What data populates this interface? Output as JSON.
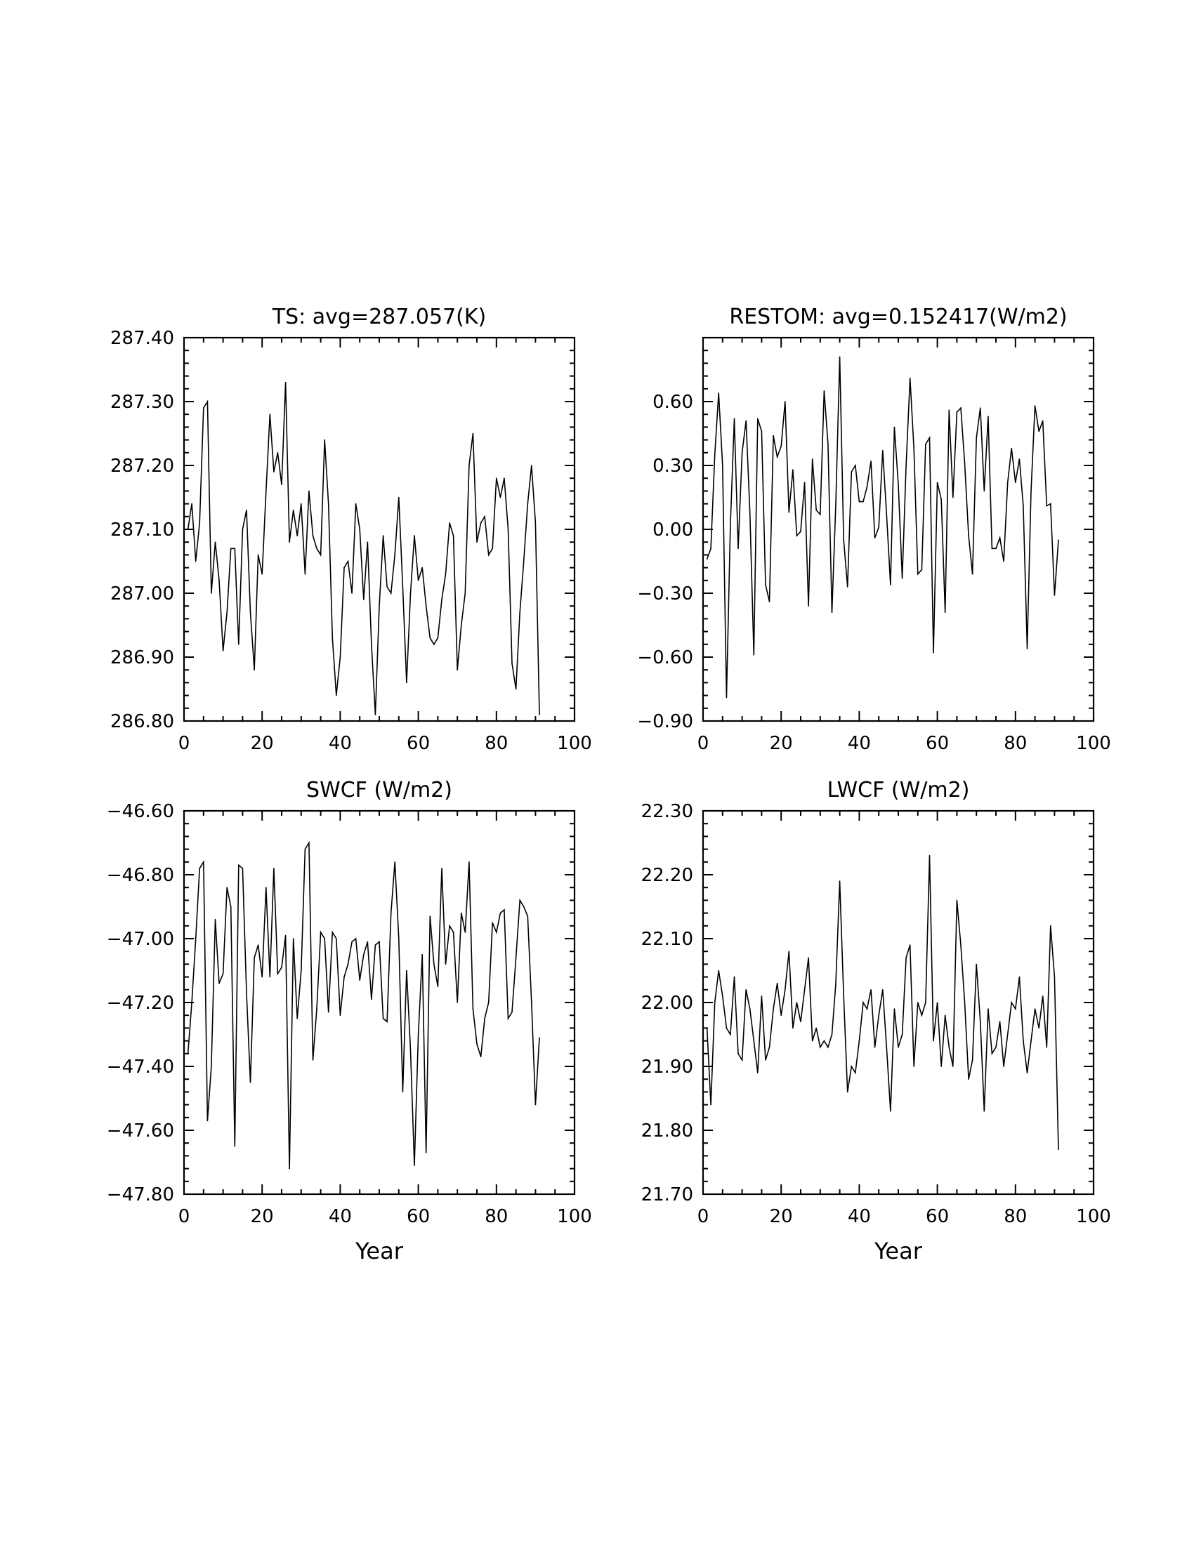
{
  "chart_data": [
    {
      "type": "line",
      "title": "TS: avg=287.057(K)",
      "xlabel": "",
      "ylabel": "",
      "xlim": [
        0,
        100
      ],
      "ylim": [
        286.8,
        287.4
      ],
      "xticks": [
        "0",
        "20",
        "40",
        "60",
        "80",
        "100"
      ],
      "yticks": [
        "286.80",
        "286.90",
        "287.00",
        "287.10",
        "287.20",
        "287.30",
        "287.40"
      ],
      "x": [
        1,
        2,
        3,
        4,
        5,
        6,
        7,
        8,
        9,
        10,
        11,
        12,
        13,
        14,
        15,
        16,
        17,
        18,
        19,
        20,
        21,
        22,
        23,
        24,
        25,
        26,
        27,
        28,
        29,
        30,
        31,
        32,
        33,
        34,
        35,
        36,
        37,
        38,
        39,
        40,
        41,
        42,
        43,
        44,
        45,
        46,
        47,
        48,
        49,
        50,
        51,
        52,
        53,
        54,
        55,
        56,
        57,
        58,
        59,
        60,
        61,
        62,
        63,
        64,
        65,
        66,
        67,
        68,
        69,
        70,
        71,
        72,
        73,
        74,
        75,
        76,
        77,
        78,
        79,
        80,
        81,
        82,
        83,
        84,
        85,
        86,
        87,
        88,
        89,
        90,
        91
      ],
      "series": [
        {
          "values": [
            287.1,
            287.14,
            287.05,
            287.11,
            287.29,
            287.3,
            287.0,
            287.08,
            287.02,
            286.91,
            286.97,
            287.07,
            287.07,
            286.92,
            287.1,
            287.13,
            286.97,
            286.88,
            287.06,
            287.03,
            287.16,
            287.28,
            287.19,
            287.22,
            287.17,
            287.33,
            287.08,
            287.13,
            287.09,
            287.14,
            287.03,
            287.16,
            287.09,
            287.07,
            287.06,
            287.24,
            287.14,
            286.93,
            286.84,
            286.9,
            287.04,
            287.05,
            287.0,
            287.14,
            287.1,
            286.99,
            287.08,
            286.92,
            286.81,
            286.98,
            287.09,
            287.01,
            287.0,
            287.06,
            287.15,
            287.01,
            286.86,
            287.0,
            287.09,
            287.02,
            287.04,
            286.98,
            286.93,
            286.92,
            286.93,
            286.99,
            287.03,
            287.11,
            287.09,
            286.88,
            286.95,
            287.0,
            287.2,
            287.25,
            287.08,
            287.11,
            287.12,
            287.06,
            287.07,
            287.18,
            287.15,
            287.18,
            287.1,
            286.89,
            286.85,
            286.97,
            287.05,
            287.14,
            287.2,
            287.11,
            286.81
          ]
        }
      ]
    },
    {
      "type": "line",
      "title": "RESTOM: avg=0.152417(W/m2)",
      "xlabel": "",
      "ylabel": "",
      "xlim": [
        0,
        100
      ],
      "ylim": [
        -0.9,
        0.9
      ],
      "xticks": [
        "0",
        "20",
        "40",
        "60",
        "80",
        "100"
      ],
      "yticks": [
        "−0.90",
        "−0.60",
        "−0.30",
        "0.00",
        "0.30",
        "0.60"
      ],
      "yticks_values": [
        -0.9,
        -0.6,
        -0.3,
        0.0,
        0.3,
        0.6
      ],
      "x": [
        1,
        2,
        3,
        4,
        5,
        6,
        7,
        8,
        9,
        10,
        11,
        12,
        13,
        14,
        15,
        16,
        17,
        18,
        19,
        20,
        21,
        22,
        23,
        24,
        25,
        26,
        27,
        28,
        29,
        30,
        31,
        32,
        33,
        34,
        35,
        36,
        37,
        38,
        39,
        40,
        41,
        42,
        43,
        44,
        45,
        46,
        47,
        48,
        49,
        50,
        51,
        52,
        53,
        54,
        55,
        56,
        57,
        58,
        59,
        60,
        61,
        62,
        63,
        64,
        65,
        66,
        67,
        68,
        69,
        70,
        71,
        72,
        73,
        74,
        75,
        76,
        77,
        78,
        79,
        80,
        81,
        82,
        83,
        84,
        85,
        86,
        87,
        88,
        89,
        90,
        91
      ],
      "series": [
        {
          "values": [
            -0.14,
            -0.09,
            0.35,
            0.64,
            0.3,
            -0.79,
            0.02,
            0.52,
            -0.09,
            0.36,
            0.51,
            0.08,
            -0.59,
            0.52,
            0.46,
            -0.26,
            -0.34,
            0.44,
            0.34,
            0.39,
            0.6,
            0.08,
            0.28,
            -0.03,
            -0.01,
            0.22,
            -0.36,
            0.33,
            0.09,
            0.07,
            0.65,
            0.4,
            -0.39,
            0.12,
            0.81,
            -0.05,
            -0.27,
            0.27,
            0.3,
            0.13,
            0.13,
            0.2,
            0.32,
            -0.04,
            0.01,
            0.37,
            0.07,
            -0.26,
            0.48,
            0.21,
            -0.23,
            0.3,
            0.71,
            0.38,
            -0.21,
            -0.19,
            0.4,
            0.43,
            -0.58,
            0.22,
            0.14,
            -0.39,
            0.56,
            0.15,
            0.55,
            0.57,
            0.31,
            -0.03,
            -0.21,
            0.43,
            0.57,
            0.18,
            0.53,
            -0.09,
            -0.09,
            -0.04,
            -0.15,
            0.22,
            0.38,
            0.22,
            0.33,
            0.11,
            -0.56,
            0.18,
            0.58,
            0.46,
            0.51,
            0.11,
            0.12,
            -0.31,
            -0.05
          ]
        }
      ]
    },
    {
      "type": "line",
      "title": "SWCF (W/m2)",
      "xlabel": "Year",
      "ylabel": "",
      "xlim": [
        0,
        100
      ],
      "ylim": [
        -47.8,
        -46.6
      ],
      "xticks": [
        "0",
        "20",
        "40",
        "60",
        "80",
        "100"
      ],
      "yticks": [
        "−47.80",
        "−47.60",
        "−47.40",
        "−47.20",
        "−47.00",
        "−46.80",
        "−46.60"
      ],
      "yticks_values": [
        -47.8,
        -47.6,
        -47.4,
        -47.2,
        -47.0,
        -46.8,
        -46.6
      ],
      "x": [
        1,
        2,
        3,
        4,
        5,
        6,
        7,
        8,
        9,
        10,
        11,
        12,
        13,
        14,
        15,
        16,
        17,
        18,
        19,
        20,
        21,
        22,
        23,
        24,
        25,
        26,
        27,
        28,
        29,
        30,
        31,
        32,
        33,
        34,
        35,
        36,
        37,
        38,
        39,
        40,
        41,
        42,
        43,
        44,
        45,
        46,
        47,
        48,
        49,
        50,
        51,
        52,
        53,
        54,
        55,
        56,
        57,
        58,
        59,
        60,
        61,
        62,
        63,
        64,
        65,
        66,
        67,
        68,
        69,
        70,
        71,
        72,
        73,
        74,
        75,
        76,
        77,
        78,
        79,
        80,
        81,
        82,
        83,
        84,
        85,
        86,
        87,
        88,
        89,
        90,
        91
      ],
      "series": [
        {
          "values": [
            -47.36,
            -47.2,
            -47.0,
            -46.78,
            -46.76,
            -47.57,
            -47.4,
            -46.94,
            -47.14,
            -47.11,
            -46.84,
            -46.9,
            -47.65,
            -46.77,
            -46.78,
            -47.17,
            -47.45,
            -47.06,
            -47.02,
            -47.12,
            -46.84,
            -47.12,
            -46.78,
            -47.11,
            -47.09,
            -46.99,
            -47.72,
            -47.0,
            -47.25,
            -47.1,
            -46.72,
            -46.7,
            -47.38,
            -47.22,
            -46.98,
            -47.0,
            -47.23,
            -46.98,
            -47.0,
            -47.24,
            -47.12,
            -47.08,
            -47.01,
            -47.0,
            -47.13,
            -47.05,
            -47.01,
            -47.19,
            -47.02,
            -47.01,
            -47.25,
            -47.26,
            -46.92,
            -46.76,
            -47.0,
            -47.48,
            -47.1,
            -47.35,
            -47.71,
            -47.3,
            -47.05,
            -47.67,
            -46.93,
            -47.08,
            -47.15,
            -46.78,
            -47.08,
            -46.96,
            -46.98,
            -47.2,
            -46.92,
            -46.98,
            -46.76,
            -47.22,
            -47.33,
            -47.37,
            -47.25,
            -47.2,
            -46.95,
            -46.98,
            -46.92,
            -46.91,
            -47.25,
            -47.23,
            -47.06,
            -46.88,
            -46.9,
            -46.93,
            -47.2,
            -47.52,
            -47.31
          ]
        }
      ]
    },
    {
      "type": "line",
      "title": "LWCF (W/m2)",
      "xlabel": "Year",
      "ylabel": "",
      "xlim": [
        0,
        100
      ],
      "ylim": [
        21.7,
        22.3
      ],
      "xticks": [
        "0",
        "20",
        "40",
        "60",
        "80",
        "100"
      ],
      "yticks": [
        "21.70",
        "21.80",
        "21.90",
        "22.00",
        "22.10",
        "22.20",
        "22.30"
      ],
      "x": [
        1,
        2,
        3,
        4,
        5,
        6,
        7,
        8,
        9,
        10,
        11,
        12,
        13,
        14,
        15,
        16,
        17,
        18,
        19,
        20,
        21,
        22,
        23,
        24,
        25,
        26,
        27,
        28,
        29,
        30,
        31,
        32,
        33,
        34,
        35,
        36,
        37,
        38,
        39,
        40,
        41,
        42,
        43,
        44,
        45,
        46,
        47,
        48,
        49,
        50,
        51,
        52,
        53,
        54,
        55,
        56,
        57,
        58,
        59,
        60,
        61,
        62,
        63,
        64,
        65,
        66,
        67,
        68,
        69,
        70,
        71,
        72,
        73,
        74,
        75,
        76,
        77,
        78,
        79,
        80,
        81,
        82,
        83,
        84,
        85,
        86,
        87,
        88,
        89,
        90,
        91
      ],
      "series": [
        {
          "values": [
            21.96,
            21.84,
            22.0,
            22.05,
            22.01,
            21.96,
            21.95,
            22.04,
            21.92,
            21.91,
            22.02,
            21.99,
            21.94,
            21.89,
            22.01,
            21.91,
            21.93,
            21.99,
            22.03,
            21.98,
            22.02,
            22.08,
            21.96,
            22.0,
            21.97,
            22.02,
            22.07,
            21.94,
            21.96,
            21.93,
            21.94,
            21.93,
            21.95,
            22.03,
            22.19,
            22.01,
            21.86,
            21.9,
            21.89,
            21.94,
            22.0,
            21.99,
            22.02,
            21.93,
            21.98,
            22.02,
            21.93,
            21.83,
            21.99,
            21.93,
            21.95,
            22.07,
            22.09,
            21.9,
            22.0,
            21.98,
            22.0,
            22.23,
            21.94,
            22.0,
            21.9,
            21.98,
            21.93,
            21.9,
            22.16,
            22.09,
            22.0,
            21.88,
            21.91,
            22.06,
            21.97,
            21.83,
            21.99,
            21.92,
            21.93,
            21.97,
            21.9,
            21.95,
            22.0,
            21.99,
            22.04,
            21.94,
            21.89,
            21.94,
            21.99,
            21.96,
            22.01,
            21.93,
            22.12,
            22.04,
            21.77
          ]
        }
      ]
    }
  ]
}
